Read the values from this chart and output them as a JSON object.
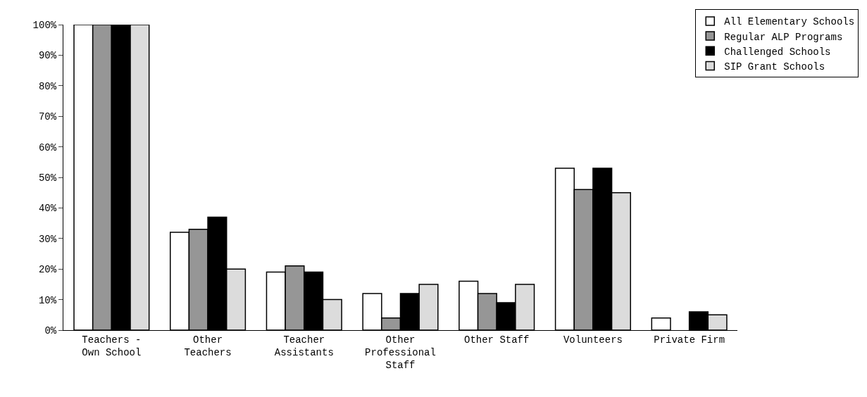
{
  "chart_data": {
    "type": "bar",
    "categories": [
      "Teachers - Own School",
      "Other Teachers",
      "Teacher Assistants",
      "Other Professional Staff",
      "Other Staff",
      "Volunteers",
      "Private Firm"
    ],
    "series": [
      {
        "name": "All Elementary Schools",
        "color": "#ffffff",
        "values": [
          100,
          32,
          19,
          12,
          16,
          53,
          4
        ]
      },
      {
        "name": "Regular ALP Programs",
        "color": "#969696",
        "values": [
          100,
          33,
          21,
          4,
          12,
          46,
          0
        ]
      },
      {
        "name": "Challenged Schools",
        "color": "#000000",
        "values": [
          100,
          37,
          19,
          12,
          9,
          53,
          6
        ]
      },
      {
        "name": "SIP Grant Schools",
        "color": "#dcdcdc",
        "values": [
          100,
          20,
          10,
          15,
          15,
          45,
          5
        ]
      }
    ],
    "ylim": [
      0,
      100
    ],
    "yticks": [
      {
        "value": 0,
        "label": "0%"
      },
      {
        "value": 10,
        "label": "10%"
      },
      {
        "value": 20,
        "label": "20%"
      },
      {
        "value": 30,
        "label": "30%"
      },
      {
        "value": 40,
        "label": "40%"
      },
      {
        "value": 50,
        "label": "50%"
      },
      {
        "value": 60,
        "label": "60%"
      },
      {
        "value": 70,
        "label": "70%"
      },
      {
        "value": 80,
        "label": "80%"
      },
      {
        "value": 90,
        "label": "90%"
      },
      {
        "value": 100,
        "label": "100%"
      }
    ],
    "grid": false,
    "legend": "top right"
  }
}
